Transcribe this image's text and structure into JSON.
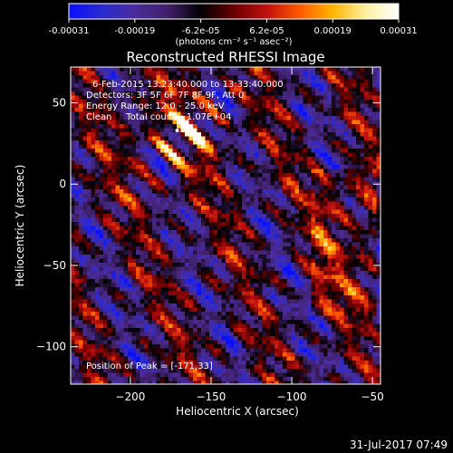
{
  "chart_data": {
    "type": "heatmap",
    "title": "Reconstructed RHESSI Image",
    "colorbar": {
      "tick_labels": [
        "-0.00031",
        "-0.00019",
        "-6.2e-05",
        "6.2e-05",
        "0.00019",
        "0.00031"
      ],
      "range": [
        -0.00031,
        0.00031
      ],
      "units_label": "(photons cm⁻² s⁻¹ asec⁻²)",
      "colors": [
        "#0a10ff",
        "#2a2ad0",
        "#4a2c9e",
        "#40206a",
        "#000000",
        "#6a0000",
        "#c01010",
        "#ff5a00",
        "#ffb400",
        "#fff0a0",
        "#ffffff"
      ]
    },
    "xlabel": "Heliocentric X (arcsec)",
    "ylabel": "Heliocentric Y (arcsec)",
    "xlim": [
      -237,
      -45
    ],
    "ylim": [
      -123,
      72
    ],
    "x_ticks": [
      -200,
      -150,
      -100,
      -50
    ],
    "y_ticks": [
      50,
      0,
      -50,
      -100
    ],
    "x_tick_labels": [
      "−200",
      "−150",
      "−100",
      "−50"
    ],
    "y_tick_labels": [
      "50",
      "0",
      "−50",
      "−100"
    ],
    "annotations": [
      "6-Feb-2015 13:23:40.000 to 13:33:40.000",
      "Detectors: 3F 5F 6F 7F 8F 9F, Att 0",
      "Energy Range: 12.0 - 25.0 keV",
      "Clean     Total counts: 1.07E+04"
    ],
    "peak_label": "Position of Peak = [-171,33]",
    "peak": [
      -171,
      33
    ],
    "grid": false
  },
  "footer": {
    "timestamp": "31-Jul-2017 07:49"
  }
}
